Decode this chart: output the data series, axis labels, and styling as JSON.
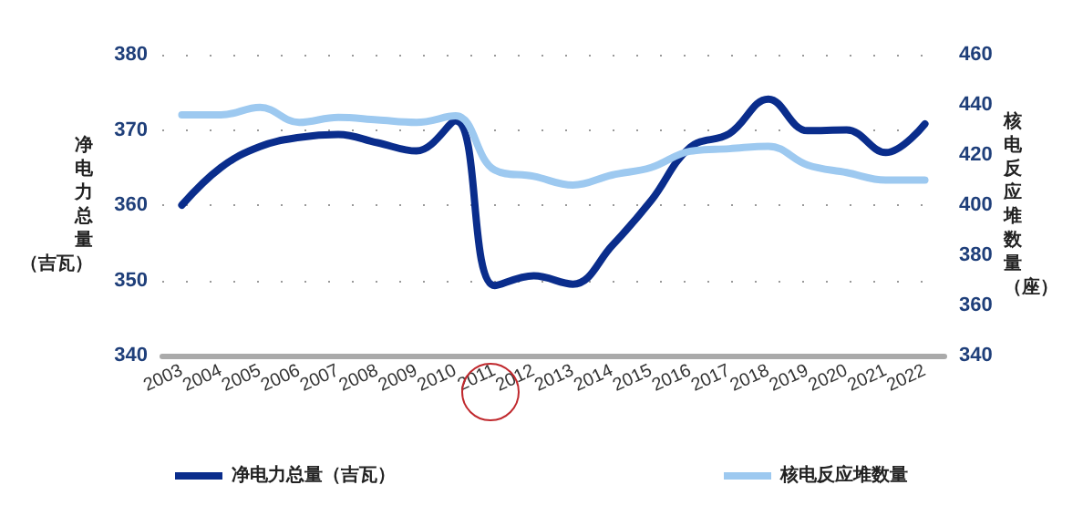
{
  "chart_data": {
    "type": "line",
    "categories": [
      "2003",
      "2004",
      "2005",
      "2006",
      "2007",
      "2008",
      "2009",
      "2010",
      "2011",
      "2012",
      "2013",
      "2014",
      "2015",
      "2016",
      "2017",
      "2018",
      "2019",
      "2020",
      "2021",
      "2022"
    ],
    "series": [
      {
        "name": "净电力总量（吉瓦）",
        "color": "#0a2d8c",
        "values": [
          360,
          365,
          367.8,
          369,
          369.4,
          368.3,
          367.2,
          371.2,
          349.3,
          350.6,
          349.5,
          354.6,
          360.6,
          367.7,
          369.5,
          374.1,
          369.9,
          370,
          367,
          370.8
        ]
      },
      {
        "name": "核电反应堆数量",
        "color": "#9dc9f0",
        "axis": "y2",
        "values": [
          436,
          436,
          439,
          433,
          435,
          434,
          433,
          435.6,
          414,
          411.5,
          408,
          412,
          415,
          421.5,
          422.5,
          423.5,
          416,
          413,
          410,
          410
        ]
      }
    ],
    "ylabel": "净电力总量（吉瓦）",
    "y2label": "核电反应堆数量（座）",
    "ylim": [
      340,
      380
    ],
    "yticks": [
      340,
      350,
      360,
      370,
      380
    ],
    "y2lim": [
      340,
      460
    ],
    "y2ticks": [
      340,
      360,
      380,
      400,
      420,
      440,
      460
    ],
    "grid": "y",
    "legend": "bottom",
    "marker": "none",
    "line_style": "solid"
  }
}
